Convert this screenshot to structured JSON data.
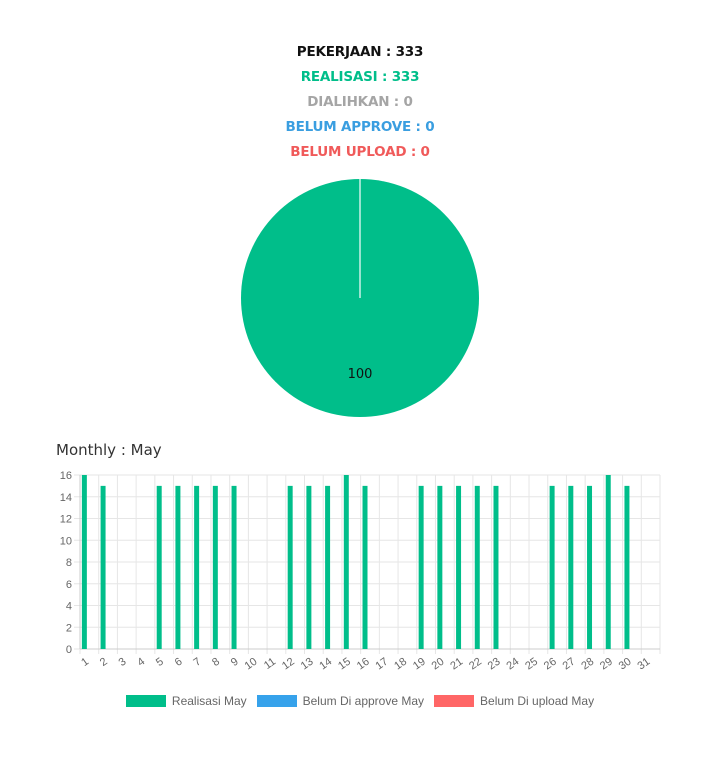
{
  "summary": {
    "pekerjaan": {
      "label": "PEKERJAAN",
      "value": "333",
      "color": "#111111"
    },
    "realisasi": {
      "label": "REALISASI",
      "value": "333",
      "color": "#00be8a"
    },
    "dialihkan": {
      "label": "DIALIHKAN",
      "value": "0",
      "color": "#a5a5a5"
    },
    "belum_approve": {
      "label": "BELUM APPROVE",
      "value": "0",
      "color": "#3a9ee0"
    },
    "belum_upload": {
      "label": "BELUM UPLOAD",
      "value": "0",
      "color": "#f05a5a"
    }
  },
  "monthly": {
    "label": "Monthly",
    "month": "May"
  },
  "colors": {
    "realisasi": "#00be8a",
    "approve": "#36a2eb",
    "upload": "#ff6666",
    "grid": "#e6e6e6",
    "tick": "#666666"
  },
  "chart_data": [
    {
      "type": "pie",
      "slices": [
        {
          "name": "Realisasi",
          "value": 100,
          "label": "100",
          "color": "#00be8a"
        },
        {
          "name": "Dialihkan",
          "value": 0,
          "color": "#a5a5a5"
        },
        {
          "name": "Belum Approve",
          "value": 0,
          "color": "#3a9ee0"
        },
        {
          "name": "Belum Upload",
          "value": 0,
          "color": "#f05a5a"
        }
      ]
    },
    {
      "type": "bar",
      "categories": [
        "1",
        "2",
        "3",
        "4",
        "5",
        "6",
        "7",
        "8",
        "9",
        "10",
        "11",
        "12",
        "13",
        "14",
        "15",
        "16",
        "17",
        "18",
        "19",
        "20",
        "21",
        "22",
        "23",
        "24",
        "25",
        "26",
        "27",
        "28",
        "29",
        "30",
        "31"
      ],
      "series": [
        {
          "name": "Realisasi May",
          "color": "#00be8a",
          "values": [
            16,
            15,
            0,
            0,
            15,
            15,
            15,
            15,
            15,
            0,
            0,
            15,
            15,
            15,
            16,
            15,
            0,
            0,
            15,
            15,
            15,
            15,
            15,
            0,
            0,
            15,
            15,
            15,
            16,
            15,
            0
          ]
        },
        {
          "name": "Belum Di approve May",
          "color": "#36a2eb",
          "values": [
            0,
            0,
            0,
            0,
            0,
            0,
            0,
            0,
            0,
            0,
            0,
            0,
            0,
            0,
            0,
            0,
            0,
            0,
            0,
            0,
            0,
            0,
            0,
            0,
            0,
            0,
            0,
            0,
            0,
            0,
            0
          ]
        },
        {
          "name": "Belum Di upload May",
          "color": "#ff6666",
          "values": [
            0,
            0,
            0,
            0,
            0,
            0,
            0,
            0,
            0,
            0,
            0,
            0,
            0,
            0,
            0,
            0,
            0,
            0,
            0,
            0,
            0,
            0,
            0,
            0,
            0,
            0,
            0,
            0,
            0,
            0,
            0
          ]
        }
      ],
      "yticks": [
        "0",
        "2",
        "4",
        "6",
        "8",
        "10",
        "12",
        "14",
        "16"
      ],
      "ylim": [
        0,
        16
      ],
      "grid": true,
      "legend": "bottom"
    }
  ]
}
